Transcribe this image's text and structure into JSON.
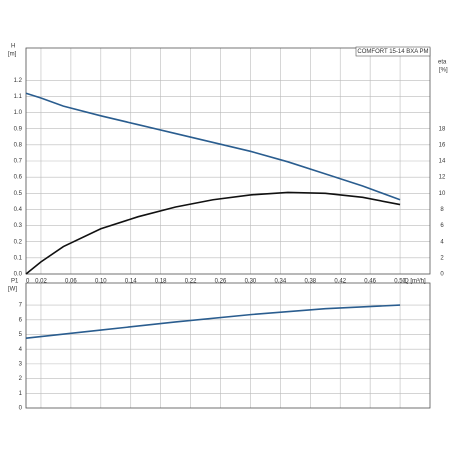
{
  "chart_data": [
    {
      "type": "line",
      "y_label": "H",
      "y_unit": "[m]",
      "y2_label": "eta",
      "y2_unit": "[%]",
      "title": "COMFORT 15-14 BXA PM",
      "x_label": "Q [m³/h]",
      "x": [
        0,
        0.02,
        0.05,
        0.1,
        0.15,
        0.2,
        0.25,
        0.3,
        0.35,
        0.4,
        0.45,
        0.5
      ],
      "series": [
        {
          "name": "H",
          "color": "#2a5d8f",
          "values": [
            1.12,
            1.09,
            1.04,
            0.98,
            0.925,
            0.87,
            0.815,
            0.76,
            0.695,
            0.62,
            0.545,
            0.46
          ]
        },
        {
          "name": "eta",
          "color": "#111111",
          "axis": "y2",
          "values": [
            0,
            1.5,
            3.4,
            5.6,
            7.1,
            8.3,
            9.2,
            9.8,
            10.1,
            10.0,
            9.5,
            8.6
          ]
        }
      ],
      "xlim": [
        0,
        0.54
      ],
      "xticks": [
        0,
        0.02,
        0.06,
        {
          "value": 0.1,
          "label": "0.10"
        },
        0.14,
        0.18,
        0.22,
        0.26,
        {
          "value": 0.3,
          "label": "0.30"
        },
        0.34,
        0.38,
        0.42,
        0.46,
        {
          "value": 0.5,
          "label": "0.50"
        }
      ],
      "ylim": [
        0,
        1.4
      ],
      "yticks": [
        {
          "value": 0,
          "label": "0.0"
        },
        0.1,
        0.2,
        0.3,
        0.4,
        0.5,
        0.6,
        0.7,
        0.8,
        0.9,
        {
          "value": 1,
          "label": "1.0"
        },
        1.1,
        1.2
      ],
      "y2lim": [
        0,
        28
      ],
      "y2ticks": [
        0,
        2,
        4,
        6,
        8,
        10,
        12,
        14,
        16,
        18
      ],
      "grid": true
    },
    {
      "type": "line",
      "y_label": "P1",
      "y_unit": "[W]",
      "x": [
        0,
        0.1,
        0.2,
        0.3,
        0.4,
        0.5
      ],
      "series": [
        {
          "name": "P1",
          "color": "#2a5d8f",
          "values": [
            4.75,
            5.3,
            5.85,
            6.35,
            6.75,
            7.0
          ]
        }
      ],
      "xlim": [
        0,
        0.54
      ],
      "xticks": [
        0,
        0.02,
        0.06,
        0.1,
        0.14,
        0.18,
        0.22,
        0.26,
        0.3,
        0.34,
        0.38,
        0.42,
        0.46,
        0.5
      ],
      "ylim": [
        0,
        8.5
      ],
      "yticks": [
        0,
        1,
        2,
        3,
        4,
        5,
        6,
        7
      ],
      "grid": true
    }
  ]
}
